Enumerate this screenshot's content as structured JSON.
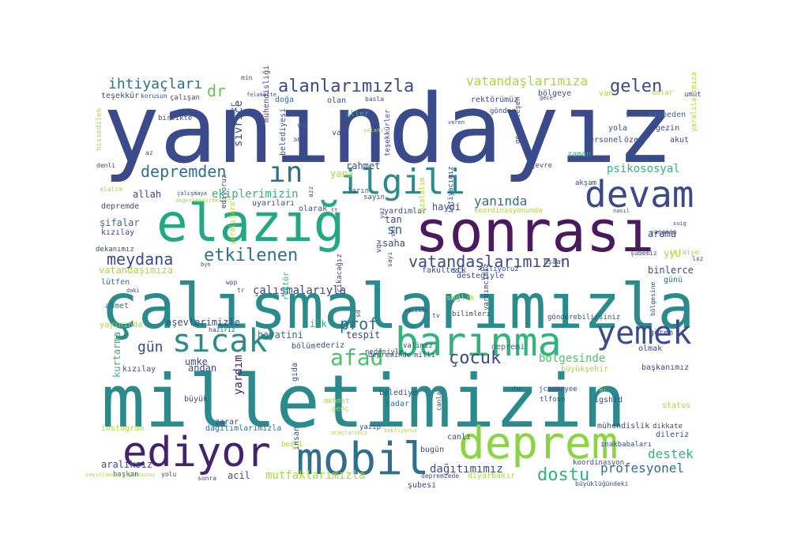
{
  "cloud": {
    "words": [
      {
        "text": "yanındayız",
        "color": "#3b4a8a",
        "rot": 0
      },
      {
        "text": "milletimizin",
        "color": "#2a8a8c",
        "rot": 0
      },
      {
        "text": "çalışmalarımızla",
        "color": "#2a8a8c",
        "rot": 0
      },
      {
        "text": "sonrası",
        "color": "#4a1a5e",
        "rot": 0
      },
      {
        "text": "elazığ",
        "color": "#22a885",
        "rot": 0
      },
      {
        "text": "deprem",
        "color": "#8ad640",
        "rot": 0
      },
      {
        "text": "mobil",
        "color": "#2e6f8e",
        "rot": 0
      },
      {
        "text": "ediyor",
        "color": "#44226e",
        "rot": 0
      },
      {
        "text": "barınma",
        "color": "#2fb47c",
        "rot": 0
      },
      {
        "text": "devam",
        "color": "#3b4a8a",
        "rot": 0
      },
      {
        "text": "ilgili",
        "color": "#2a8a8c",
        "rot": 0
      },
      {
        "text": "yemek",
        "color": "#3b4a8a",
        "rot": 0
      },
      {
        "text": "sıcak",
        "color": "#2a8a8c",
        "rot": 0
      },
      {
        "text": "ın",
        "color": "#2e6f8e",
        "rot": 0
      },
      {
        "text": "alanlarımızla",
        "color": "#3b4a8a",
        "rot": 0
      },
      {
        "text": "depremden",
        "color": "#2e6f8e",
        "rot": 0
      },
      {
        "text": "etkilenen",
        "color": "#2e6f8e",
        "rot": 0
      },
      {
        "text": "meydana",
        "color": "#3b4a8a",
        "rot": 0
      },
      {
        "text": "dostu",
        "color": "#2fb47c",
        "rot": 0
      },
      {
        "text": "afad",
        "color": "#4ac26d",
        "rot": 0
      },
      {
        "text": "çocuk",
        "color": "#3b4a8a",
        "rot": 0
      },
      {
        "text": "vatandaşlarımızın",
        "color": "#3b4a8a",
        "rot": 0
      },
      {
        "text": "gelen",
        "color": "#3b4a8a",
        "rot": 0
      },
      {
        "text": "prof",
        "color": "#2e6f8e",
        "rot": 0
      },
      {
        "text": "destek",
        "color": "#2fb47c",
        "rot": 0
      },
      {
        "text": "profesyonel",
        "color": "#2e6f8e",
        "rot": 0
      },
      {
        "text": "vatandaşlarımıza",
        "color": "#a8d83a",
        "rot": 0
      },
      {
        "text": "ihtiyaçları",
        "color": "#2e6f8e",
        "rot": 0
      },
      {
        "text": "psikososyal",
        "color": "#2fb47c",
        "rot": 0
      },
      {
        "text": "yanında",
        "color": "#2e6f8e",
        "rot": 0
      },
      {
        "text": "ekiplerimizin",
        "color": "#2fb47c",
        "rot": 0
      },
      {
        "text": "çalışmalarıyla",
        "color": "#3b4a8a",
        "rot": 0
      },
      {
        "text": "vatandaşımıza",
        "color": "#a8d83a",
        "rot": 0
      },
      {
        "text": "gün",
        "color": "#3b4a8a",
        "rot": 0
      },
      {
        "text": "dr",
        "color": "#6cc24a",
        "rot": 0
      },
      {
        "text": "sn",
        "color": "#2e6f8e",
        "rot": 0
      },
      {
        "text": "allah",
        "color": "#3b4a8a",
        "rot": 0
      },
      {
        "text": "bölgesinde",
        "color": "#4ac26d",
        "rot": 0
      },
      {
        "text": "mutfaklarımızla",
        "color": "#a8d83a",
        "rot": 0
      },
      {
        "text": "dağıtımımız",
        "color": "#3b4a8a",
        "rot": 0
      },
      {
        "text": "kurtarma",
        "color": "#2fb47c",
        "rot": 270
      },
      {
        "text": "yardım",
        "color": "#44226e",
        "rot": 270
      },
      {
        "text": "sivrice",
        "color": "#3b4a8a",
        "rot": 270
      },
      {
        "text": "binlerce",
        "color": "#3b4a8a",
        "rot": 0
      },
      {
        "text": "arama",
        "color": "#3b4a8a",
        "rot": 0
      },
      {
        "text": "şifalar",
        "color": "#2e6f8e",
        "rot": 0
      },
      {
        "text": "aralıksız",
        "color": "#3b4a8a",
        "rot": 0
      },
      {
        "text": "acil",
        "color": "#3b4a8a",
        "rot": 0
      },
      {
        "text": "rahmet",
        "color": "#3b4a8a",
        "rot": 0
      },
      {
        "text": "tan",
        "color": "#3b4a8a",
        "rot": 0
      },
      {
        "text": "haydi",
        "color": "#3b4a8a",
        "rot": 0
      },
      {
        "text": "saha",
        "color": "#3b4a8a",
        "rot": 0
      },
      {
        "text": "ilk",
        "color": "#2fb47c",
        "rot": 0
      },
      {
        "text": "tespit",
        "color": "#3b4a8a",
        "rot": 0
      },
      {
        "text": "hayatini",
        "color": "#2e6f8e",
        "rot": 0
      },
      {
        "text": "aşevlerimizle",
        "color": "#3b4a8a",
        "rot": 0
      },
      {
        "text": "andan",
        "color": "#3b4a8a",
        "rot": 0
      },
      {
        "text": "umke",
        "color": "#3b4a8a",
        "rot": 0
      },
      {
        "text": "büyük",
        "color": "#3b4a8a",
        "rot": 0
      },
      {
        "text": "kızılay",
        "color": "#3b4a8a",
        "rot": 0
      },
      {
        "text": "ahmet",
        "color": "#2e6f8e",
        "rot": 0
      },
      {
        "text": "lütfen",
        "color": "#2e6f8e",
        "rot": 0
      },
      {
        "text": "depremde",
        "color": "#3b4a8a",
        "rot": 0
      },
      {
        "text": "alalım",
        "color": "#a8d83a",
        "rot": 0
      },
      {
        "text": "kızılay",
        "color": "#3b4a8a",
        "rot": 0
      },
      {
        "text": "olarak",
        "color": "#3b4a8a",
        "rot": 0
      },
      {
        "text": "yardımlar",
        "color": "#3b4a8a",
        "rot": 0
      },
      {
        "text": "uyarıları",
        "color": "#3b4a8a",
        "rot": 0
      },
      {
        "text": "sayın",
        "color": "#3b4a8a",
        "rot": 0
      },
      {
        "text": "ların",
        "color": "#3b4a8a",
        "rot": 0
      },
      {
        "text": "yana",
        "color": "#a8d83a",
        "rot": 0
      },
      {
        "text": "var",
        "color": "#3b4a8a",
        "rot": 0
      },
      {
        "text": "vs",
        "color": "#2e6f8e",
        "rot": 0
      },
      {
        "text": "iller",
        "color": "#2fb47c",
        "rot": 0
      },
      {
        "text": "olan",
        "color": "#3b4a8a",
        "rot": 0
      },
      {
        "text": "doğa",
        "color": "#2e6f8e",
        "rot": 0
      },
      {
        "text": "rektörümüz",
        "color": "#3b4a8a",
        "rot": 0
      },
      {
        "text": "bölgeye",
        "color": "#3b4a8a",
        "rot": 0
      },
      {
        "text": "van",
        "color": "#a8d83a",
        "rot": 0
      },
      {
        "text": "yola",
        "color": "#3b4a8a",
        "rot": 0
      },
      {
        "text": "gezin",
        "color": "#3b4a8a",
        "rot": 0
      },
      {
        "text": "kaybeden",
        "color": "#2e6f8e",
        "rot": 0
      },
      {
        "text": "personel",
        "color": "#3b4a8a",
        "rot": 0
      },
      {
        "text": "özer",
        "color": "#3b4a8a",
        "rot": 0
      },
      {
        "text": "akut",
        "color": "#3b4a8a",
        "rot": 0
      },
      {
        "text": "zaman",
        "color": "#2fb47c",
        "rot": 0
      },
      {
        "text": "yyu",
        "color": "#a8d83a",
        "rot": 0
      },
      {
        "text": "günü",
        "color": "#2e6f8e",
        "rot": 0
      },
      {
        "text": "gören",
        "color": "#3b4a8a",
        "rot": 0
      },
      {
        "text": "olmak",
        "color": "#3b4a8a",
        "rot": 0
      },
      {
        "text": "başkanımız",
        "color": "#3b4a8a",
        "rot": 0
      },
      {
        "text": "büyükşehir",
        "color": "#a8d83a",
        "rot": 0
      },
      {
        "text": "depremi",
        "color": "#2e6f8e",
        "rot": 0
      },
      {
        "text": "dileriz",
        "color": "#3b4a8a",
        "rot": 0
      },
      {
        "text": "status",
        "color": "#a8d83a",
        "rot": 0
      },
      {
        "text": "igshid",
        "color": "#3b4a8a",
        "rot": 0
      },
      {
        "text": "tlfosn",
        "color": "#3b4a8a",
        "rot": 0
      },
      {
        "text": "jcosmnyee",
        "color": "#3b4a8a",
        "rot": 0
      },
      {
        "text": "mühendislik",
        "color": "#3b4a8a",
        "rot": 0
      },
      {
        "text": "kadar",
        "color": "#2e6f8e",
        "rot": 0
      },
      {
        "text": "belediye",
        "color": "#3b4a8a",
        "rot": 0
      },
      {
        "text": "canlı",
        "color": "#3b4a8a",
        "rot": 0
      },
      {
        "text": "bugün",
        "color": "#3b4a8a",
        "rot": 0
      },
      {
        "text": "şubesi",
        "color": "#3b4a8a",
        "rot": 0
      },
      {
        "text": "diyarbakır",
        "color": "#a8d83a",
        "rot": 0
      },
      {
        "text": "dağıtımlarımızla",
        "color": "#2e6f8e",
        "rot": 0
      },
      {
        "text": "zarar",
        "color": "#3b4a8a",
        "rot": 0
      },
      {
        "text": "instagram",
        "color": "#a8d83a",
        "rot": 0
      },
      {
        "text": "sonra",
        "color": "#3b4a8a",
        "rot": 0
      },
      {
        "text": "yayınında",
        "color": "#a8d83a",
        "rot": 0
      },
      {
        "text": "bölüm",
        "color": "#3b4a8a",
        "rot": 0
      },
      {
        "text": "dekanımız",
        "color": "#3b4a8a",
        "rot": 0
      },
      {
        "text": "fakültesi",
        "color": "#3b4a8a",
        "rot": 0
      },
      {
        "text": "stk",
        "color": "#3b4a8a",
        "rot": 0
      },
      {
        "text": "desteğiyle",
        "color": "#3b4a8a",
        "rot": 0
      },
      {
        "text": "diliyoruz",
        "color": "#3b4a8a",
        "rot": 0
      },
      {
        "text": "nşaat",
        "color": "#3b4a8a",
        "rot": 0
      },
      {
        "text": "koordinasyonunda",
        "color": "#a8d83a",
        "rot": 0
      },
      {
        "text": "teşekkür",
        "color": "#3b4a8a",
        "rot": 0
      },
      {
        "text": "çalışan",
        "color": "#3b4a8a",
        "rot": 0
      },
      {
        "text": "korusun",
        "color": "#3b4a8a",
        "rot": 0
      },
      {
        "text": "birlikte",
        "color": "#3b4a8a",
        "rot": 0
      },
      {
        "text": "gönder",
        "color": "#3b4a8a",
        "rot": 0
      },
      {
        "text": "yiik",
        "color": "#3b4a8a",
        "rot": 0
      },
      {
        "text": "dolar",
        "color": "#a8d83a",
        "rot": 0
      },
      {
        "text": "umut",
        "color": "#3b4a8a",
        "rot": 0
      },
      {
        "text": "sağlık",
        "color": "#a8d83a",
        "rot": 0
      },
      {
        "text": "valimiz",
        "color": "#3b4a8a",
        "rot": 0
      },
      {
        "text": "milli",
        "color": "#3b4a8a",
        "rot": 0
      },
      {
        "text": "nedeniyle",
        "color": "#3b4a8a",
        "rot": 0
      },
      {
        "text": "ederiz",
        "color": "#3b4a8a",
        "rot": 0
      },
      {
        "text": "depreminde",
        "color": "#3b4a8a",
        "rot": 0
      },
      {
        "text": "gida",
        "color": "#3b4a8a",
        "rot": 270
      },
      {
        "text": "mehmet",
        "color": "#a8d83a",
        "rot": 0
      },
      {
        "text": "genç",
        "color": "#a8d83a",
        "rot": 0
      },
      {
        "text": "yazıp",
        "color": "#3b4a8a",
        "rot": 0
      },
      {
        "text": "bedri",
        "color": "#a8d83a",
        "rot": 0
      },
      {
        "text": "insan",
        "color": "#3b4a8a",
        "rot": 270
      },
      {
        "text": "başkan",
        "color": "#3b4a8a",
        "rot": 0
      },
      {
        "text": "yolu",
        "color": "#3b4a8a",
        "rot": 0
      },
      {
        "text": "dikkate",
        "color": "#3b4a8a",
        "rot": 0
      },
      {
        "text": "ınakbabaları",
        "color": "#3b4a8a",
        "rot": 0
      },
      {
        "text": "depremzede",
        "color": "#3b4a8a",
        "rot": 0
      },
      {
        "text": "büyüklüğündeki",
        "color": "#3b4a8a",
        "rot": 0
      },
      {
        "text": "koordinasyon",
        "color": "#3b4a8a",
        "rot": 0
      },
      {
        "text": "şubemiz",
        "color": "#3b4a8a",
        "rot": 0
      },
      {
        "text": "itfaiye",
        "color": "#a8d83a",
        "rot": 0
      },
      {
        "text": "lxz",
        "color": "#3b4a8a",
        "rot": 0
      },
      {
        "text": "çevre",
        "color": "#3b4a8a",
        "rot": 0
      },
      {
        "text": "akşam",
        "color": "#3b4a8a",
        "rot": 0
      },
      {
        "text": "yardımcımız",
        "color": "#3b4a8a",
        "rot": 270
      },
      {
        "text": "gönderebilirsiniz",
        "color": "#3b4a8a",
        "rot": 0
      },
      {
        "text": "bilimleri",
        "color": "#3b4a8a",
        "rot": 0
      },
      {
        "text": "rektör",
        "color": "#2fb47c",
        "rot": 270
      },
      {
        "text": "ülker",
        "color": "#3b4a8a",
        "rot": 270
      },
      {
        "text": "mühendisliği",
        "color": "#3b4a8a",
        "rot": 270
      },
      {
        "text": "belediyesi",
        "color": "#3b4a8a",
        "rot": 270
      },
      {
        "text": "teşekkürler",
        "color": "#3b4a8a",
        "rot": 270
      },
      {
        "text": "yaralılara",
        "color": "#a8d83a",
        "rot": 270
      },
      {
        "text": "yaralılarımıza",
        "color": "#a8d83a",
        "rot": 270
      },
      {
        "text": "hissedilen",
        "color": "#a8d83a",
        "rot": 270
      },
      {
        "text": "bölgesine",
        "color": "#3b4a8a",
        "rot": 270
      },
      {
        "text": "ediyoruz",
        "color": "#3b4a8a",
        "rot": 270
      },
      {
        "text": "çıkacağız",
        "color": "#3b4a8a",
        "rot": 270
      },
      {
        "text": "ihtiyacımız",
        "color": "#3b4a8a",
        "rot": 270
      },
      {
        "text": "azalalım",
        "color": "#a8d83a",
        "rot": 270
      },
      {
        "text": "gerçekleşen",
        "color": "#3b4a8a",
        "rot": 270
      },
      {
        "text": "vqw",
        "color": "#3b4a8a",
        "rot": 270
      },
      {
        "text": "sayı",
        "color": "#3b4a8a",
        "rot": 270
      },
      {
        "text": "yaz",
        "color": "#3b4a8a",
        "rot": 270
      },
      {
        "text": "sd",
        "color": "#3b4a8a",
        "rot": 270
      },
      {
        "text": "azz",
        "color": "#3b4a8a",
        "rot": 270
      },
      {
        "text": "sms",
        "color": "#3b4a8a",
        "rot": 270
      },
      {
        "text": "canla",
        "color": "#3b4a8a",
        "rot": 270
      },
      {
        "text": "wpp",
        "color": "#3b4a8a",
        "rot": 0
      },
      {
        "text": "min",
        "color": "#3b4a8a",
        "rot": 0
      },
      {
        "text": "felakette",
        "color": "#3b4a8a",
        "rot": 0
      },
      {
        "text": "basla",
        "color": "#3b4a8a",
        "rot": 0
      },
      {
        "text": "gece",
        "color": "#3b4a8a",
        "rot": 0
      },
      {
        "text": "veren",
        "color": "#3b4a8a",
        "rot": 0
      },
      {
        "text": "yalani",
        "color": "#a8d83a",
        "rot": 0
      },
      {
        "text": "bb",
        "color": "#3b4a8a",
        "rot": 0
      },
      {
        "text": "az",
        "color": "#3b4a8a",
        "rot": 0
      },
      {
        "text": "denli",
        "color": "#3b4a8a",
        "rot": 0
      },
      {
        "text": "çalışmaya",
        "color": "#3b4a8a",
        "rot": 0
      },
      {
        "text": "değerlendirmeleri",
        "color": "#a8d83a",
        "rot": 0
      },
      {
        "text": "nasıl",
        "color": "#3b4a8a",
        "rot": 0
      },
      {
        "text": "suig",
        "color": "#3b4a8a",
        "rot": 0
      },
      {
        "text": "yaşanan",
        "color": "#3b4a8a",
        "rot": 0
      },
      {
        "text": "byn",
        "color": "#3b4a8a",
        "rot": 0
      },
      {
        "text": "tr",
        "color": "#3b4a8a",
        "rot": 0
      },
      {
        "text": "daki",
        "color": "#3b4a8a",
        "rot": 0
      },
      {
        "text": "calisan",
        "color": "#3b4a8a",
        "rot": 0
      },
      {
        "text": "tv",
        "color": "#3b4a8a",
        "rot": 0
      },
      {
        "text": "haziriz",
        "color": "#3b4a8a",
        "rot": 0
      },
      {
        "text": "dan",
        "color": "#3b4a8a",
        "rot": 0
      },
      {
        "text": "mi",
        "color": "#a8d83a",
        "rot": 0
      },
      {
        "text": "bekliyoruz",
        "color": "#a8d83a",
        "rot": 0
      },
      {
        "text": "araçlarımız",
        "color": "#a8d83a",
        "rot": 0
      },
      {
        "text": "yayınlanabiliyorsunuz",
        "color": "#a8d83a",
        "rot": 0
      },
      {
        "text": "tt",
        "color": "#3b4a8a",
        "rot": 0
      }
    ]
  }
}
